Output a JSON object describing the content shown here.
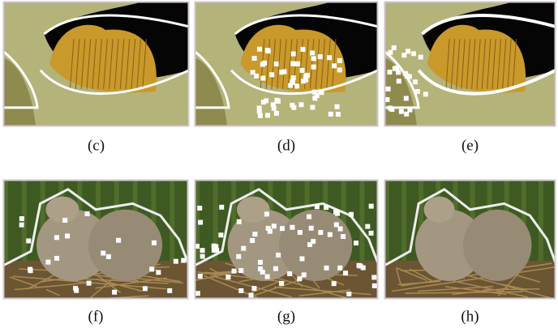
{
  "panels": [
    {
      "label": "(c)"
    },
    {
      "label": "(d)"
    },
    {
      "label": "(e)"
    },
    {
      "label": "(f)"
    },
    {
      "label": "(g)"
    },
    {
      "label": "(h)"
    }
  ]
}
